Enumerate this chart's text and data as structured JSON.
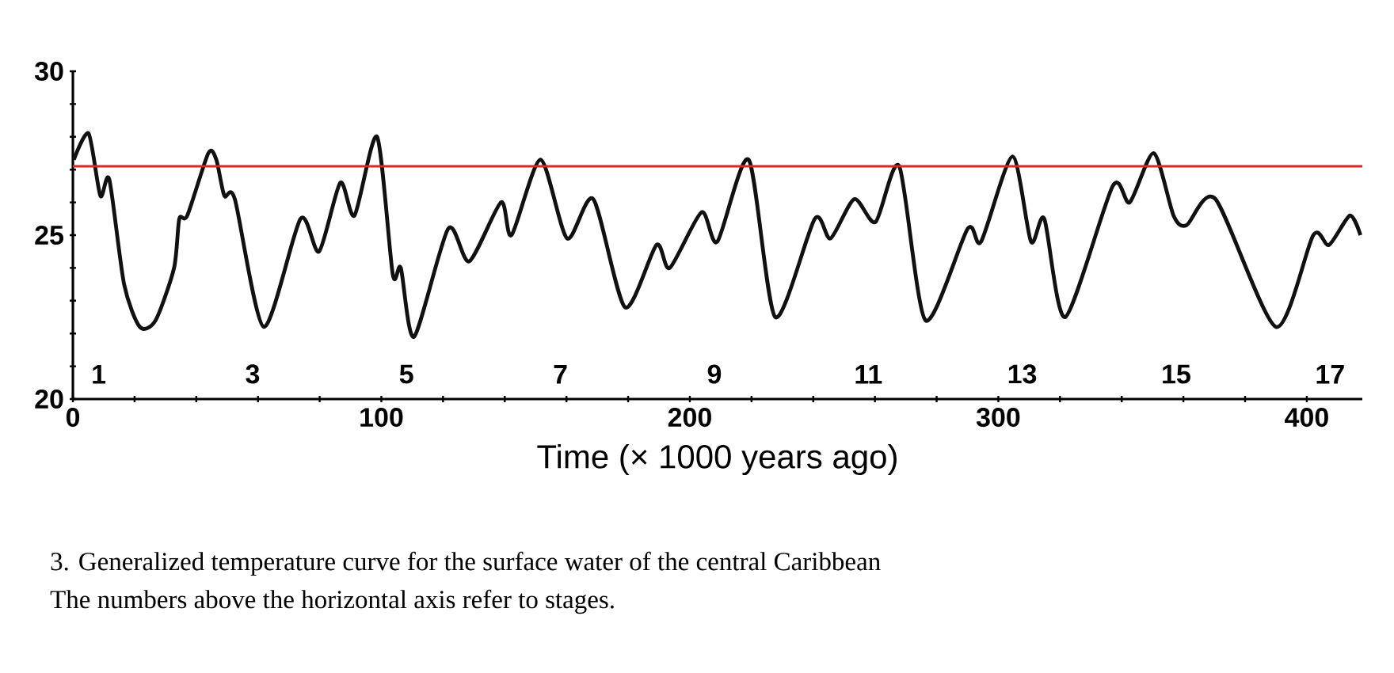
{
  "chart_data": {
    "type": "line",
    "xlabel": "Time (× 1000 years ago)",
    "x": [
      0.3,
      5.1,
      8.9,
      11.8,
      16.6,
      21.7,
      26.8,
      32.8,
      34.5,
      37.1,
      43.9,
      46.5,
      49.1,
      52.5,
      61.9,
      73.8,
      79.8,
      86.7,
      91.3,
      98.6,
      103.7,
      106.3,
      110.6,
      121.7,
      128.5,
      138.8,
      142.2,
      151.6,
      160.2,
      168.7,
      179,
      189.2,
      193.5,
      203.8,
      208.9,
      219.1,
      227.7,
      240.5,
      245.6,
      253.3,
      260.2,
      267.9,
      276.4,
      290.1,
      294.4,
      304.6,
      310.6,
      314.9,
      321.7,
      337.1,
      342.6,
      350.4,
      356.8,
      361,
      370.4,
      390,
      402.1,
      407.2,
      414,
      417.4
    ],
    "series": [
      {
        "color": "#111111",
        "values": [
          27.3,
          28.1,
          26.2,
          26.7,
          23.5,
          22.2,
          22.4,
          24.0,
          25.5,
          25.6,
          27.5,
          27.3,
          26.2,
          26.1,
          22.2,
          25.5,
          24.5,
          26.6,
          25.6,
          28.0,
          23.8,
          24.0,
          21.9,
          25.2,
          24.2,
          26.0,
          25.0,
          27.3,
          24.9,
          26.1,
          22.8,
          24.7,
          24.0,
          25.7,
          24.8,
          27.3,
          22.5,
          25.5,
          24.9,
          26.1,
          25.4,
          27.1,
          22.4,
          25.2,
          24.8,
          27.4,
          24.8,
          25.5,
          22.5,
          26.5,
          26.0,
          27.5,
          25.6,
          25.3,
          26.1,
          22.2,
          25.0,
          24.7,
          25.6,
          25.0
        ]
      }
    ],
    "xlim": [
      0,
      418
    ],
    "ylim": [
      20,
      30
    ],
    "xticks": [
      0,
      {
        "value": 20,
        "label": null
      },
      {
        "value": 40,
        "label": null
      },
      {
        "value": 60,
        "label": null
      },
      {
        "value": 80,
        "label": null
      },
      100,
      {
        "value": 120,
        "label": null
      },
      {
        "value": 140,
        "label": null
      },
      {
        "value": 160,
        "label": null
      },
      {
        "value": 180,
        "label": null
      },
      200,
      {
        "value": 220,
        "label": null
      },
      {
        "value": 240,
        "label": null
      },
      {
        "value": 260,
        "label": null
      },
      {
        "value": 280,
        "label": null
      },
      300,
      {
        "value": 320,
        "label": null
      },
      {
        "value": 340,
        "label": null
      },
      {
        "value": 360,
        "label": null
      },
      {
        "value": 380,
        "label": null
      },
      400
    ],
    "yticks": [
      20,
      {
        "value": 21,
        "label": null
      },
      {
        "value": 22,
        "label": null
      },
      {
        "value": 23,
        "label": null
      },
      {
        "value": 24,
        "label": null
      },
      25,
      {
        "value": 26,
        "label": null
      },
      {
        "value": 27,
        "label": null
      },
      {
        "value": 28,
        "label": null
      },
      {
        "value": 29,
        "label": null
      },
      30
    ],
    "ref_lines": [
      {
        "axis": "y",
        "value": 27.1,
        "color": "#d42a2a"
      }
    ],
    "annotations": [
      "1",
      "3",
      "5",
      "7",
      "9",
      "11",
      "13",
      "15",
      "17",
      "3. Generalized temperature curve for the surface water of the central Caribbean",
      "The numbers above the horizontal axis refer to stages."
    ],
    "grid": false,
    "marker": "none",
    "line_style": "solid"
  }
}
